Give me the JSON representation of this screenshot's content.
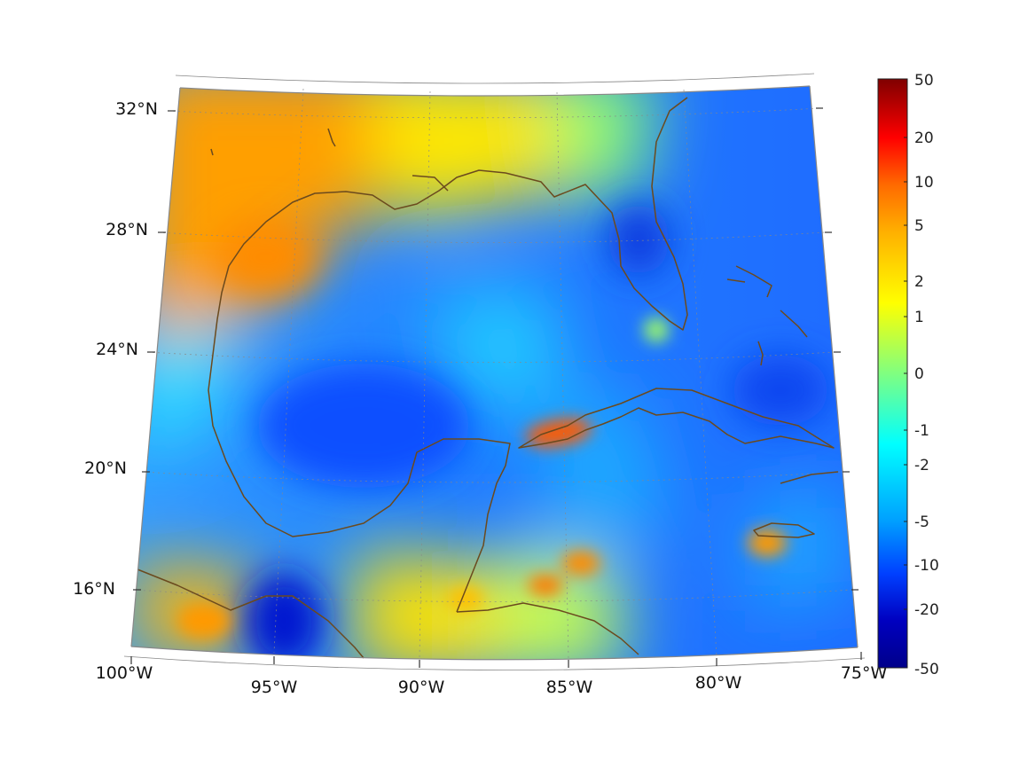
{
  "map": {
    "projection": "lambert-conformal",
    "region": "Gulf of Mexico and Caribbean",
    "lon_range": [
      -100,
      -75
    ],
    "lat_range": [
      14,
      33
    ],
    "frame_color": "#888888",
    "graticule_color": "#999999",
    "coastline_color": "#6b4a1e",
    "lat_labels": [
      "32°N",
      "28°N",
      "24°N",
      "20°N",
      "16°N"
    ],
    "lon_labels": [
      "100°W",
      "95°W",
      "90°W",
      "85°W",
      "80°W",
      "75°W"
    ]
  },
  "colorbar": {
    "colormap": "jet",
    "tick_labels": [
      "50",
      "20",
      "10",
      "5",
      "2",
      "1",
      "0",
      "-1",
      "-2",
      "-5",
      "-10",
      "-20",
      "-50"
    ],
    "colors": [
      "#7f0000",
      "#ff0000",
      "#ff6a00",
      "#ffb000",
      "#ffff00",
      "#80ff80",
      "#00ffff",
      "#00a0ff",
      "#0040ff",
      "#0000c0",
      "#00008a"
    ]
  }
}
